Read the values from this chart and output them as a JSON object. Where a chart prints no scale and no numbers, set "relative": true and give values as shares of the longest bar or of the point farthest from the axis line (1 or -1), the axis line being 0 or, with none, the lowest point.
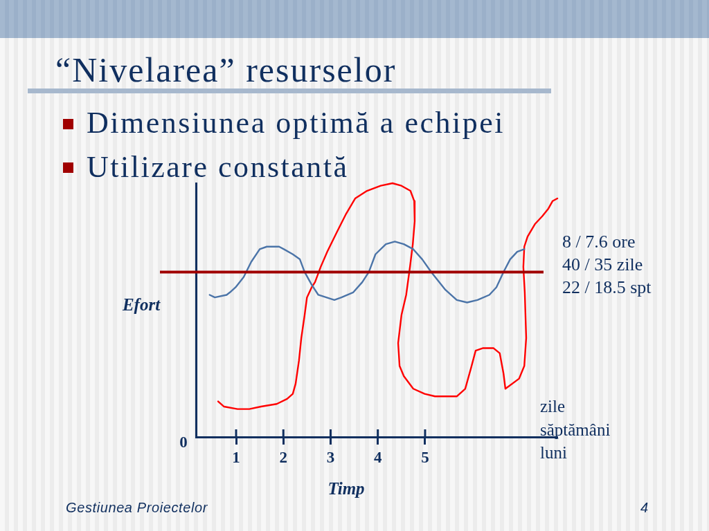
{
  "chart_data": {
    "type": "line",
    "title": "“Nivelarea” resurselor",
    "xlabel": "Timp",
    "ylabel": "Efort",
    "relative": true,
    "xlim": [
      0.15,
      7.8
    ],
    "xticks": [
      1,
      2,
      3,
      4,
      5
    ],
    "series": [
      {
        "color": "#4b74a8",
        "x": [
          0.44,
          0.55,
          0.8,
          0.87,
          0.99,
          1.16,
          1.32,
          1.5,
          1.65,
          1.91,
          2.01,
          2.2,
          2.35,
          2.45,
          2.6,
          2.74,
          3.08,
          3.23,
          3.48,
          3.67,
          3.81,
          3.95,
          4.17,
          4.36,
          4.55,
          4.75,
          4.94,
          5.13,
          5.43,
          5.67,
          5.89,
          6.11,
          6.36,
          6.51,
          6.66,
          6.8,
          6.95,
          7.1
        ],
        "values": [
          0.56,
          0.55,
          0.56,
          0.57,
          0.59,
          0.63,
          0.69,
          0.74,
          0.75,
          0.75,
          0.74,
          0.72,
          0.7,
          0.65,
          0.6,
          0.56,
          0.54,
          0.55,
          0.57,
          0.61,
          0.65,
          0.72,
          0.76,
          0.77,
          0.76,
          0.74,
          0.7,
          0.65,
          0.58,
          0.54,
          0.53,
          0.54,
          0.56,
          0.59,
          0.65,
          0.7,
          0.73,
          0.74
        ]
      },
      {
        "color": "#ff0000",
        "x": [
          0.62,
          0.74,
          1.03,
          1.28,
          1.53,
          1.86,
          2.08,
          2.2,
          2.26,
          2.33,
          2.38,
          2.45,
          2.5,
          2.6,
          2.67,
          2.79,
          2.93,
          3.14,
          3.33,
          3.52,
          3.77,
          4.06,
          4.31,
          4.5,
          4.69,
          4.77,
          4.78,
          4.74,
          4.68,
          4.6,
          4.5,
          4.43,
          4.46,
          4.55,
          4.75,
          4.99,
          5.21,
          5.67,
          5.85,
          5.97,
          6.07,
          6.22,
          6.45,
          6.58,
          6.66,
          6.7,
          6.99,
          7.1,
          7.14,
          7.11,
          7.08,
          7.1,
          7.17,
          7.33,
          7.48,
          7.61,
          7.7,
          7.8
        ],
        "values": [
          0.14,
          0.12,
          0.11,
          0.11,
          0.12,
          0.13,
          0.15,
          0.17,
          0.21,
          0.3,
          0.39,
          0.48,
          0.55,
          0.59,
          0.61,
          0.67,
          0.73,
          0.81,
          0.88,
          0.94,
          0.97,
          0.99,
          1.0,
          0.99,
          0.97,
          0.93,
          0.85,
          0.76,
          0.67,
          0.56,
          0.48,
          0.37,
          0.28,
          0.24,
          0.19,
          0.17,
          0.16,
          0.16,
          0.19,
          0.27,
          0.34,
          0.35,
          0.35,
          0.33,
          0.25,
          0.19,
          0.23,
          0.28,
          0.39,
          0.57,
          0.67,
          0.75,
          0.79,
          0.84,
          0.87,
          0.9,
          0.93,
          0.94
        ]
      }
    ],
    "ref_lines": [
      {
        "axis": "y",
        "value": 0.65,
        "label": "8 / 7.6 ore\n40 / 35 zile\n22 / 18.5 spt",
        "color": "#a00000"
      }
    ],
    "annotations": [
      "Dimensiunea optimă a echipei",
      "Utilizare constantă",
      "zile\nsăptămâni\nluni",
      "0",
      "Gestiunea Proiectelor",
      "4"
    ],
    "grid": false,
    "legend": false,
    "marker": "none",
    "line_style": "solid"
  }
}
